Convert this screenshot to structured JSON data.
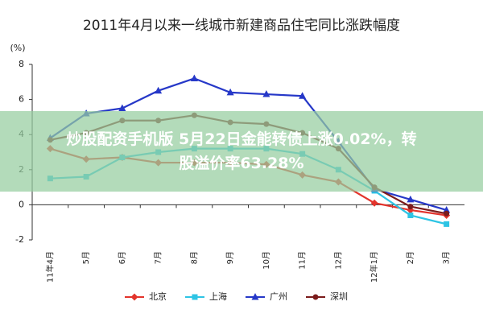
{
  "chart_data": {
    "type": "line",
    "title": "2011年4月以来一线城市新建商品住宅同比涨跌幅度",
    "ylabel": "(%)",
    "categories": [
      "11年4月",
      "5月",
      "6月",
      "7月",
      "8月",
      "9月",
      "10月",
      "11月",
      "12月",
      "12年1月",
      "2月",
      "3月"
    ],
    "series": [
      {
        "name": "北京",
        "color": "#e3342c",
        "marker": "diamond",
        "values": [
          3.2,
          2.6,
          2.7,
          2.4,
          2.4,
          2.4,
          2.3,
          1.7,
          1.3,
          0.1,
          -0.3,
          -0.6
        ]
      },
      {
        "name": "上海",
        "color": "#2ec4e4",
        "marker": "square",
        "values": [
          1.5,
          1.6,
          2.7,
          3.0,
          3.2,
          3.2,
          3.2,
          2.9,
          2.0,
          0.8,
          -0.6,
          -1.1
        ]
      },
      {
        "name": "广州",
        "color": "#2638c8",
        "marker": "triangle",
        "values": [
          3.8,
          5.2,
          5.5,
          6.5,
          7.2,
          6.4,
          6.3,
          6.2,
          3.6,
          0.9,
          0.3,
          -0.3
        ]
      },
      {
        "name": "深圳",
        "color": "#7b1c1c",
        "marker": "circle",
        "values": [
          3.7,
          4.1,
          4.8,
          4.8,
          5.1,
          4.7,
          4.6,
          4.1,
          3.2,
          1.0,
          -0.1,
          -0.5
        ]
      }
    ],
    "ylim": [
      -2,
      8
    ],
    "yticks": [
      -2,
      0,
      2,
      4,
      6,
      8
    ],
    "legend": "bottom"
  },
  "banner": {
    "lines": [
      "炒股配资手机版 5月22日金能转债上涨0.02%，转",
      "股溢价率63.28%"
    ]
  }
}
